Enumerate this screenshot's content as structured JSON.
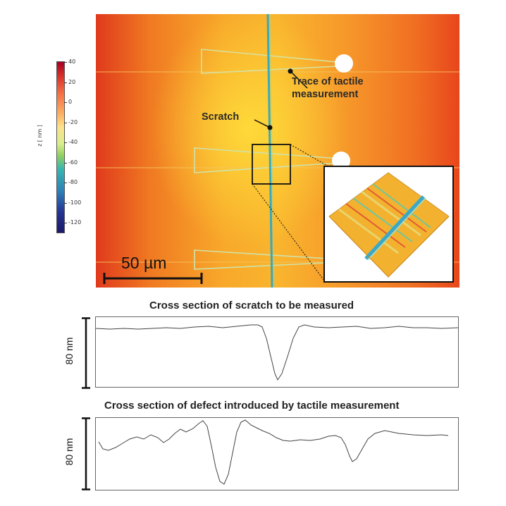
{
  "colorbar": {
    "title": "z [ nm ]",
    "ticks": [
      "40",
      "20",
      "0",
      "-20",
      "-40",
      "-60",
      "-80",
      "-100",
      "-120"
    ]
  },
  "micrograph": {
    "annotations": {
      "trace_line1": "Trace of tactile",
      "trace_line2": "measurement",
      "scratch": "Scratch"
    },
    "scale_bar_label": "50 µm"
  },
  "profiles": [
    {
      "title": "Cross section of scratch to be measured",
      "scale_label": "80 nm"
    },
    {
      "title": "Cross section of defect introduced by tactile measurement",
      "scale_label": "80 nm"
    }
  ],
  "colors": {
    "heat_hot": "#e03a1c",
    "heat_warm": "#f9b52e",
    "scratch_line": "#3aa9b8",
    "profile_line": "#444444"
  }
}
